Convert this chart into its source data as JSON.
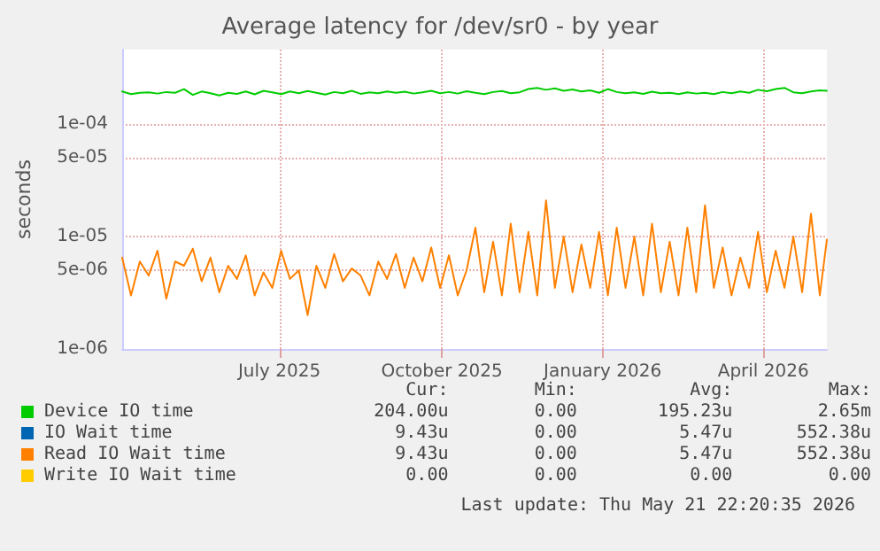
{
  "chart_data": {
    "type": "line",
    "title": "Average latency for /dev/sr0 - by year",
    "ylabel": "seconds",
    "log": "y",
    "grid": true,
    "legend": "bottom",
    "marker": "none",
    "line_style": "solid",
    "xlim": [
      "2025-04-17",
      "2026-05-21"
    ],
    "xticks": [
      {
        "value": "2025-07-15",
        "label": "July 2025"
      },
      {
        "value": "2025-10-15",
        "label": "October 2025"
      },
      {
        "value": "2026-01-14",
        "label": "January 2026"
      },
      {
        "value": "2026-04-15",
        "label": "April 2026"
      }
    ],
    "ylim": [
      1e-06,
      0.00046
    ],
    "yticks": [
      {
        "value": 1e-06,
        "label": "1e-06"
      },
      {
        "value": 5e-06,
        "label": "5e-06"
      },
      {
        "value": 1e-05,
        "label": "1e-05"
      },
      {
        "value": 5e-05,
        "label": "5e-05"
      },
      {
        "value": 0.0001,
        "label": "1e-04"
      }
    ],
    "x": [
      "2025-04-17",
      "2025-04-22",
      "2025-04-27",
      "2025-05-02",
      "2025-05-07",
      "2025-05-12",
      "2025-05-17",
      "2025-05-22",
      "2025-05-27",
      "2025-06-01",
      "2025-06-06",
      "2025-06-11",
      "2025-06-16",
      "2025-06-21",
      "2025-06-26",
      "2025-07-01",
      "2025-07-06",
      "2025-07-11",
      "2025-07-16",
      "2025-07-21",
      "2025-07-26",
      "2025-07-31",
      "2025-08-05",
      "2025-08-10",
      "2025-08-15",
      "2025-08-20",
      "2025-08-25",
      "2025-08-30",
      "2025-09-04",
      "2025-09-09",
      "2025-09-14",
      "2025-09-19",
      "2025-09-24",
      "2025-09-29",
      "2025-10-04",
      "2025-10-09",
      "2025-10-14",
      "2025-10-19",
      "2025-10-24",
      "2025-10-29",
      "2025-11-03",
      "2025-11-08",
      "2025-11-13",
      "2025-11-18",
      "2025-11-23",
      "2025-11-28",
      "2025-12-03",
      "2025-12-08",
      "2025-12-13",
      "2025-12-18",
      "2025-12-23",
      "2025-12-28",
      "2026-01-02",
      "2026-01-07",
      "2026-01-12",
      "2026-01-17",
      "2026-01-22",
      "2026-01-27",
      "2026-02-01",
      "2026-02-06",
      "2026-02-11",
      "2026-02-16",
      "2026-02-21",
      "2026-02-26",
      "2026-03-03",
      "2026-03-08",
      "2026-03-13",
      "2026-03-18",
      "2026-03-23",
      "2026-03-28",
      "2026-04-02",
      "2026-04-07",
      "2026-04-12",
      "2026-04-17",
      "2026-04-22",
      "2026-04-27",
      "2026-05-02",
      "2026-05-07",
      "2026-05-12",
      "2026-05-17",
      "2026-05-21"
    ],
    "series": [
      {
        "name": "Device IO time",
        "color": "#00cc00",
        "values": [
          0.000195,
          0.000185,
          0.00019,
          0.000192,
          0.000187,
          0.000193,
          0.00019,
          0.000205,
          0.000182,
          0.000195,
          0.000188,
          0.00018,
          0.00019,
          0.000186,
          0.000195,
          0.000184,
          0.000198,
          0.000192,
          0.000185,
          0.000195,
          0.000188,
          0.000197,
          0.00019,
          0.000183,
          0.000193,
          0.000188,
          0.000198,
          0.000186,
          0.000192,
          0.000188,
          0.000195,
          0.00019,
          0.000194,
          0.000187,
          0.000192,
          0.000198,
          0.000188,
          0.000193,
          0.000187,
          0.000196,
          0.00019,
          0.000185,
          0.000193,
          0.000197,
          0.000188,
          0.000192,
          0.000205,
          0.00021,
          0.000202,
          0.000208,
          0.000198,
          0.000203,
          0.000195,
          0.0002,
          0.00019,
          0.000205,
          0.000193,
          0.000188,
          0.000192,
          0.000186,
          0.000194,
          0.000188,
          0.00019,
          0.000185,
          0.000192,
          0.000187,
          0.00019,
          0.000185,
          0.000193,
          0.000188,
          0.000195,
          0.00019,
          0.000202,
          0.000196,
          0.000205,
          0.00021,
          0.000192,
          0.000188,
          0.000195,
          0.0002,
          0.000198
        ]
      },
      {
        "name": "IO Wait time",
        "color": "#0066b3",
        "values": [
          null,
          null,
          null,
          null,
          null,
          null,
          null,
          null,
          null,
          null,
          null,
          null,
          null,
          null,
          null,
          null,
          null,
          null,
          null,
          null,
          null,
          null,
          null,
          null,
          null,
          null,
          null,
          null,
          null,
          null,
          null,
          null,
          null,
          null,
          null,
          null,
          null,
          null,
          null,
          null,
          null,
          null,
          null,
          null,
          null,
          null,
          null,
          null,
          null,
          null,
          null,
          null,
          null,
          null,
          null,
          null,
          null,
          null,
          null,
          null,
          null,
          null,
          null,
          null,
          null,
          null,
          null,
          null,
          null,
          null,
          null,
          null,
          null,
          null,
          null,
          null,
          null,
          null,
          null,
          null,
          null
        ]
      },
      {
        "name": "Read IO Wait time",
        "color": "#ff8000",
        "values": [
          6.5e-06,
          3e-06,
          6e-06,
          4.5e-06,
          7.5e-06,
          2.8e-06,
          6e-06,
          5.5e-06,
          7.8e-06,
          4e-06,
          6.5e-06,
          3.2e-06,
          5.5e-06,
          4.2e-06,
          6.8e-06,
          3e-06,
          4.8e-06,
          3.5e-06,
          7.5e-06,
          4.2e-06,
          5e-06,
          2e-06,
          5.5e-06,
          3.5e-06,
          7e-06,
          4e-06,
          5.2e-06,
          4.5e-06,
          3e-06,
          6e-06,
          4.2e-06,
          7e-06,
          3.5e-06,
          6.5e-06,
          4e-06,
          8e-06,
          3.5e-06,
          6.8e-06,
          3e-06,
          5e-06,
          1.2e-05,
          3.2e-06,
          9e-06,
          3e-06,
          1.3e-05,
          3.2e-06,
          1.1e-05,
          3e-06,
          2.1e-05,
          3.5e-06,
          1e-05,
          3.2e-06,
          8.5e-06,
          3.5e-06,
          1.1e-05,
          3e-06,
          1.2e-05,
          3.5e-06,
          1e-05,
          3e-06,
          1.3e-05,
          3.2e-06,
          9e-06,
          3e-06,
          1.2e-05,
          3.2e-06,
          1.9e-05,
          3.5e-06,
          8e-06,
          3e-06,
          6.5e-06,
          3.5e-06,
          1.1e-05,
          3.2e-06,
          7.5e-06,
          3.5e-06,
          1e-05,
          3.2e-06,
          1.6e-05,
          3e-06,
          9.4e-06
        ]
      },
      {
        "name": "Write IO Wait time",
        "color": "#ffcc00",
        "values": [
          null,
          null,
          null,
          null,
          null,
          null,
          null,
          null,
          null,
          null,
          null,
          null,
          null,
          null,
          null,
          null,
          null,
          null,
          null,
          null,
          null,
          null,
          null,
          null,
          null,
          null,
          null,
          null,
          null,
          null,
          null,
          null,
          null,
          null,
          null,
          null,
          null,
          null,
          null,
          null,
          null,
          null,
          null,
          null,
          null,
          null,
          null,
          null,
          null,
          null,
          null,
          null,
          null,
          null,
          null,
          null,
          null,
          null,
          null,
          null,
          null,
          null,
          null,
          null,
          null,
          null,
          null,
          null,
          null,
          null,
          null,
          null,
          null,
          null,
          null,
          null,
          null,
          null,
          null,
          null,
          null
        ]
      }
    ],
    "annotations": [
      "Cur:",
      "Min:",
      "Avg:",
      "Max:",
      "204.00u",
      "0.00",
      "195.23u",
      "2.65m",
      "9.43u",
      "0.00",
      "5.47u",
      "552.38u",
      "9.43u",
      "0.00",
      "5.47u",
      "552.38u",
      "0.00",
      "0.00",
      "0.00",
      "0.00",
      "Last update: Thu May 21 22:20:35 2026"
    ]
  }
}
